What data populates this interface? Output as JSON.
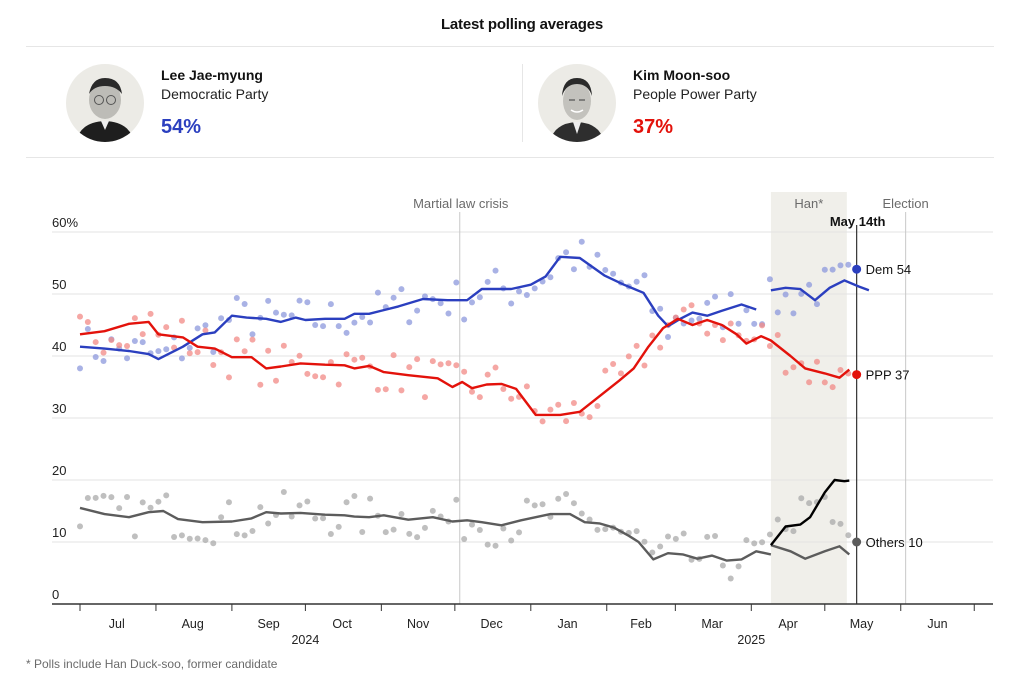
{
  "header": {
    "title": "Latest polling averages"
  },
  "candidates": [
    {
      "name": "Lee Jae-myung",
      "party": "Democratic Party",
      "percent": "54%",
      "color": "#2b3fbf"
    },
    {
      "name": "Kim Moon-soo",
      "party": "People Power Party",
      "percent": "37%",
      "color": "#e3120b"
    }
  ],
  "footnote": "* Polls include Han Duck-soo, former candidate",
  "chart_data": {
    "type": "line",
    "title": "",
    "xlabel": "",
    "ylabel": "",
    "ylim": [
      0,
      60
    ],
    "yticks": [
      {
        "value": 60,
        "label": "60%"
      },
      {
        "value": 50,
        "label": "50"
      },
      {
        "value": 40,
        "label": "40"
      },
      {
        "value": 30,
        "label": "30"
      },
      {
        "value": 20,
        "label": "20"
      },
      {
        "value": 10,
        "label": "10"
      },
      {
        "value": 0,
        "label": "0"
      }
    ],
    "xdomain_days": [
      -30,
      371
    ],
    "x_unit": "days since 2024-07-01",
    "month_ticks": [
      0,
      31,
      62,
      92,
      123,
      153,
      184,
      215,
      243,
      274,
      304,
      335,
      365
    ],
    "month_labels": [
      {
        "label": "Jul",
        "day": 15
      },
      {
        "label": "Aug",
        "day": 46
      },
      {
        "label": "Sep",
        "day": 77
      },
      {
        "label": "Oct",
        "day": 107
      },
      {
        "label": "Nov",
        "day": 138
      },
      {
        "label": "Dec",
        "day": 168
      },
      {
        "label": "Jan",
        "day": 199
      },
      {
        "label": "Feb",
        "day": 229
      },
      {
        "label": "Mar",
        "day": 258
      },
      {
        "label": "Apr",
        "day": 289
      },
      {
        "label": "May",
        "day": 319
      },
      {
        "label": "Jun",
        "day": 350
      }
    ],
    "year_labels": [
      {
        "label": "2024",
        "day": 92
      },
      {
        "label": "2025",
        "day": 274
      }
    ],
    "grid": true,
    "annotations": [
      {
        "type": "vline",
        "day": 155,
        "label": "Martial law crisis",
        "style": "light"
      },
      {
        "type": "band",
        "from": 282,
        "to": 313,
        "label": "Han*"
      },
      {
        "type": "vline",
        "day": 317,
        "label": "May 14th",
        "style": "dark"
      },
      {
        "type": "vline",
        "day": 337,
        "label": "Election",
        "style": "light"
      }
    ],
    "series": [
      {
        "name": "Dem",
        "end_label": "Dem 54",
        "end_value": 54,
        "color": "#2b3fbf",
        "dot_color": "#8c98dc",
        "line": [
          [
            0,
            41.5
          ],
          [
            10,
            41.2
          ],
          [
            20,
            40.8
          ],
          [
            28,
            40.3
          ],
          [
            32,
            39.5
          ],
          [
            42,
            41.5
          ],
          [
            50,
            43.5
          ],
          [
            55,
            43.8
          ],
          [
            62,
            46.5
          ],
          [
            68,
            46.2
          ],
          [
            76,
            46.0
          ],
          [
            82,
            45.5
          ],
          [
            88,
            46.2
          ],
          [
            92,
            45.8
          ],
          [
            100,
            46.0
          ],
          [
            108,
            46.0
          ],
          [
            112,
            46.8
          ],
          [
            118,
            46.8
          ],
          [
            130,
            48.0
          ],
          [
            140,
            49.2
          ],
          [
            150,
            49.0
          ],
          [
            158,
            49.0
          ],
          [
            164,
            50.8
          ],
          [
            176,
            50.8
          ],
          [
            184,
            51.5
          ],
          [
            190,
            52.8
          ],
          [
            196,
            56.0
          ],
          [
            204,
            55.8
          ],
          [
            214,
            53.0
          ],
          [
            222,
            51.5
          ],
          [
            230,
            50.2
          ],
          [
            236,
            46.5
          ],
          [
            240,
            44.8
          ],
          [
            245,
            46.0
          ],
          [
            250,
            47.0
          ],
          [
            256,
            46.5
          ],
          [
            262,
            47.3
          ],
          [
            270,
            48.3
          ],
          [
            276,
            47.5
          ],
          [
            282,
            49.0
          ],
          [
            290,
            49.0
          ],
          [
            296,
            50.8
          ],
          [
            306,
            51.0
          ],
          [
            312,
            52.2
          ],
          [
            318,
            51.5
          ],
          [
            324,
            50.0
          ],
          [
            326,
            50.5
          ]
        ],
        "line2": [
          [
            282,
            50.6
          ],
          [
            288,
            51.0
          ],
          [
            294,
            50.8
          ],
          [
            300,
            49.0
          ],
          [
            306,
            51.0
          ],
          [
            312,
            52.2
          ],
          [
            318,
            51.2
          ],
          [
            322,
            50.6
          ]
        ]
      },
      {
        "name": "PPP",
        "end_label": "PPP 37",
        "end_value": 37,
        "color": "#e3120b",
        "dot_color": "#f28a86",
        "line": [
          [
            0,
            43.5
          ],
          [
            10,
            44.0
          ],
          [
            20,
            45.2
          ],
          [
            28,
            45.5
          ],
          [
            32,
            43.5
          ],
          [
            42,
            43.0
          ],
          [
            48,
            41.5
          ],
          [
            55,
            41.2
          ],
          [
            62,
            39.8
          ],
          [
            70,
            39.8
          ],
          [
            76,
            38.0
          ],
          [
            82,
            38.3
          ],
          [
            90,
            38.8
          ],
          [
            100,
            38.6
          ],
          [
            108,
            38.5
          ],
          [
            112,
            38.0
          ],
          [
            118,
            38.4
          ],
          [
            124,
            37.4
          ],
          [
            134,
            36.9
          ],
          [
            146,
            36.4
          ],
          [
            152,
            35.0
          ],
          [
            156,
            35.8
          ],
          [
            160,
            34.8
          ],
          [
            166,
            35.4
          ],
          [
            172,
            35.5
          ],
          [
            178,
            34.7
          ],
          [
            186,
            30.5
          ],
          [
            196,
            30.5
          ],
          [
            204,
            31.0
          ],
          [
            212,
            33.5
          ],
          [
            220,
            36.0
          ],
          [
            226,
            38.0
          ],
          [
            232,
            41.5
          ],
          [
            238,
            44.5
          ],
          [
            244,
            46.0
          ],
          [
            250,
            45.0
          ],
          [
            256,
            45.8
          ],
          [
            262,
            45.0
          ],
          [
            268,
            43.5
          ],
          [
            272,
            42.0
          ],
          [
            278,
            43.2
          ],
          [
            282,
            42.5
          ],
          [
            290,
            40.0
          ],
          [
            296,
            38.0
          ],
          [
            304,
            37.2
          ],
          [
            310,
            36.5
          ],
          [
            314,
            37.8
          ]
        ]
      },
      {
        "name": "Others",
        "end_label": "Others 10",
        "end_value": 10,
        "color": "#5c5c5c",
        "dot_color": "#aaaaaa",
        "line": [
          [
            0,
            15.5
          ],
          [
            10,
            14.5
          ],
          [
            20,
            14.0
          ],
          [
            28,
            14.8
          ],
          [
            34,
            15.0
          ],
          [
            40,
            13.7
          ],
          [
            50,
            13.2
          ],
          [
            62,
            13.3
          ],
          [
            70,
            13.8
          ],
          [
            76,
            14.8
          ],
          [
            82,
            14.6
          ],
          [
            90,
            14.7
          ],
          [
            100,
            14.4
          ],
          [
            108,
            14.3
          ],
          [
            112,
            14.1
          ],
          [
            118,
            14.0
          ],
          [
            124,
            14.3
          ],
          [
            134,
            13.6
          ],
          [
            144,
            14.0
          ],
          [
            152,
            13.3
          ],
          [
            158,
            13.5
          ],
          [
            164,
            13.2
          ],
          [
            172,
            12.7
          ],
          [
            180,
            13.5
          ],
          [
            186,
            14.0
          ],
          [
            192,
            14.5
          ],
          [
            200,
            14.5
          ],
          [
            206,
            13.2
          ],
          [
            212,
            13.0
          ],
          [
            218,
            12.3
          ],
          [
            224,
            11.0
          ],
          [
            228,
            10.0
          ],
          [
            234,
            7.2
          ],
          [
            240,
            8.2
          ],
          [
            246,
            8.0
          ],
          [
            252,
            7.3
          ],
          [
            258,
            7.8
          ],
          [
            264,
            7.0
          ],
          [
            270,
            7.2
          ],
          [
            276,
            8.5
          ],
          [
            282,
            8.0
          ],
          [
            288,
            7.6
          ],
          [
            294,
            8.0
          ],
          [
            300,
            9.5
          ],
          [
            304,
            9.0
          ],
          [
            310,
            9.4
          ],
          [
            314,
            8.5
          ]
        ],
        "han_line": [
          [
            282,
            9.5
          ],
          [
            290,
            8.5
          ],
          [
            296,
            7.3
          ],
          [
            304,
            8.5
          ],
          [
            310,
            9.3
          ],
          [
            314,
            8.0
          ]
        ]
      },
      {
        "name": "Han",
        "color": "#000000",
        "line": [
          [
            282,
            9.5
          ],
          [
            288,
            12.5
          ],
          [
            294,
            12.8
          ],
          [
            298,
            14.0
          ],
          [
            304,
            18.0
          ],
          [
            308,
            20.0
          ],
          [
            312,
            19.8
          ],
          [
            314,
            19.9
          ]
        ]
      }
    ]
  }
}
